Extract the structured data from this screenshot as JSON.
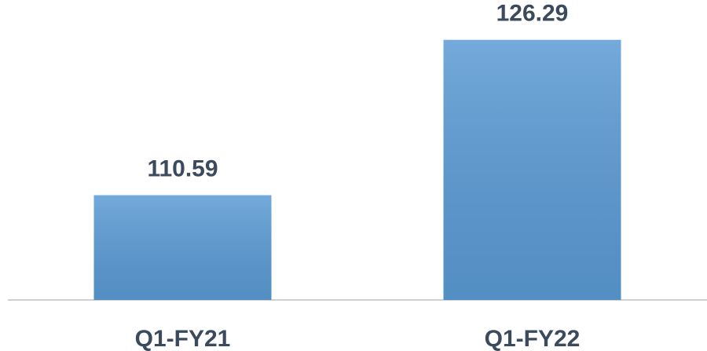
{
  "chart_data": {
    "type": "bar",
    "categories": [
      "Q1-FY21",
      "Q1-FY22"
    ],
    "values": [
      110.59,
      126.29
    ],
    "color": "#5b9bd5",
    "ylim": [
      100,
      130
    ]
  }
}
